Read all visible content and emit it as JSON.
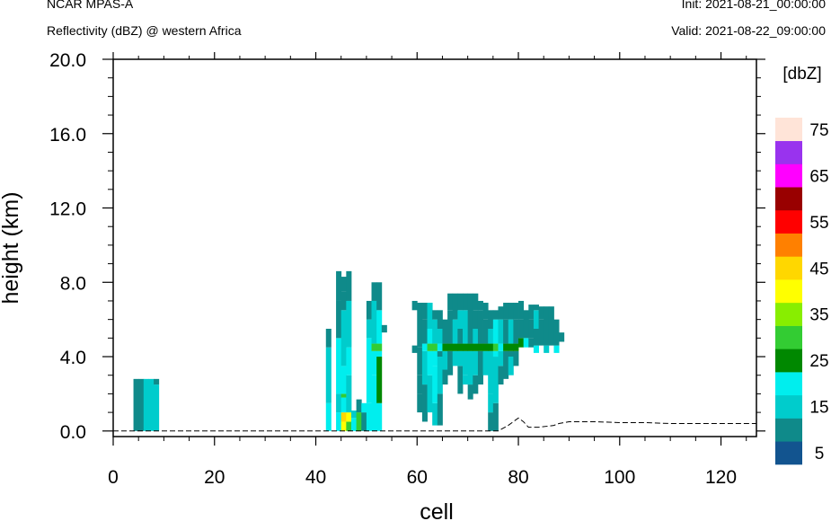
{
  "header": {
    "left_line1": "NCAR MPAS-A",
    "left_line2": "Reflectivity (dBZ) @ western Africa",
    "right_line1": "Init: 2021-08-21_00:00:00",
    "right_line2": "Valid: 2021-08-22_09:00:00"
  },
  "chart_data": {
    "type": "heatmap",
    "xlabel": "cell",
    "ylabel": "height (km)",
    "xlim": [
      0,
      127
    ],
    "ylim": [
      -0.3,
      20.0
    ],
    "x_ticks": [
      "0",
      "20",
      "40",
      "60",
      "80",
      "100",
      "120"
    ],
    "y_ticks": [
      "0.0",
      "4.0",
      "8.0",
      "12.0",
      "16.0",
      "20.0"
    ],
    "colorbar": {
      "unit_label": "[dbZ]",
      "tick_labels": [
        "5",
        "15",
        "25",
        "35",
        "45",
        "55",
        "65",
        "75"
      ],
      "levels": [
        0,
        5,
        10,
        15,
        20,
        25,
        30,
        35,
        40,
        45,
        50,
        55,
        60,
        65,
        70,
        75,
        80
      ],
      "colors": [
        "#12548f",
        "#0f8a8a",
        "#00cccc",
        "#00eeee",
        "#008800",
        "#33cc33",
        "#88ee00",
        "#ffff00",
        "#ffd700",
        "#ff8000",
        "#ff0000",
        "#990000",
        "#ff00ff",
        "#9933ee",
        "#ffe4d8"
      ]
    },
    "terrain_km": [
      [
        0,
        0.0
      ],
      [
        76,
        0.0
      ],
      [
        78,
        0.3
      ],
      [
        80,
        0.7
      ],
      [
        81,
        0.5
      ],
      [
        82,
        0.2
      ],
      [
        84,
        0.2
      ],
      [
        87,
        0.3
      ],
      [
        88,
        0.4
      ],
      [
        90,
        0.5
      ],
      [
        95,
        0.5
      ],
      [
        100,
        0.45
      ],
      [
        105,
        0.45
      ],
      [
        110,
        0.4
      ],
      [
        115,
        0.4
      ],
      [
        120,
        0.4
      ],
      [
        125,
        0.4
      ],
      [
        127,
        0.4
      ]
    ],
    "columns": [
      {
        "x": 4,
        "segs": [
          [
            0,
            2.8,
            5
          ]
        ]
      },
      {
        "x": 5,
        "segs": [
          [
            0,
            2.8,
            5
          ]
        ]
      },
      {
        "x": 6,
        "segs": [
          [
            0,
            2.8,
            10
          ]
        ]
      },
      {
        "x": 7,
        "segs": [
          [
            0,
            2.8,
            10
          ]
        ]
      },
      {
        "x": 8,
        "segs": [
          [
            0,
            2.5,
            10
          ],
          [
            2.5,
            2.8,
            5
          ]
        ]
      },
      {
        "x": 42,
        "segs": [
          [
            0,
            1.5,
            15
          ],
          [
            1.5,
            4.5,
            10
          ],
          [
            4.5,
            5.5,
            5
          ]
        ]
      },
      {
        "x": 44,
        "segs": [
          [
            0,
            1.0,
            15
          ],
          [
            1.0,
            2.0,
            10
          ],
          [
            2.0,
            5.0,
            15
          ],
          [
            5.0,
            7.0,
            5
          ],
          [
            7.0,
            8.6,
            5
          ]
        ]
      },
      {
        "x": 45,
        "segs": [
          [
            0,
            0.5,
            35
          ],
          [
            0.5,
            1.0,
            40
          ],
          [
            1.0,
            1.8,
            15
          ],
          [
            1.8,
            2.0,
            25
          ],
          [
            2.0,
            3.5,
            15
          ],
          [
            3.5,
            6.5,
            10
          ],
          [
            6.5,
            7.5,
            5
          ],
          [
            7.5,
            8.3,
            5
          ]
        ]
      },
      {
        "x": 46,
        "segs": [
          [
            0,
            0.5,
            25
          ],
          [
            0.5,
            1.0,
            35
          ],
          [
            1.0,
            3.0,
            10
          ],
          [
            3.0,
            4.5,
            15
          ],
          [
            4.5,
            7.0,
            10
          ],
          [
            7.0,
            8.6,
            5
          ]
        ]
      },
      {
        "x": 47,
        "segs": [
          [
            0,
            0.7,
            15
          ],
          [
            0.7,
            1.1,
            10
          ]
        ]
      },
      {
        "x": 48,
        "segs": [
          [
            0,
            1.0,
            25
          ],
          [
            1.0,
            1.7,
            5
          ]
        ]
      },
      {
        "x": 49,
        "segs": [
          [
            0,
            1.0,
            5
          ],
          [
            1.0,
            1.5,
            15
          ]
        ]
      },
      {
        "x": 50,
        "segs": [
          [
            0,
            1.5,
            15
          ],
          [
            1.5,
            5.0,
            15
          ],
          [
            5.0,
            6.0,
            10
          ],
          [
            6.0,
            7.0,
            5
          ]
        ]
      },
      {
        "x": 51,
        "segs": [
          [
            0,
            3.0,
            15
          ],
          [
            3.0,
            4.3,
            15
          ],
          [
            4.3,
            4.7,
            25
          ],
          [
            4.7,
            7.0,
            10
          ],
          [
            7.0,
            8.0,
            5
          ]
        ]
      },
      {
        "x": 52,
        "segs": [
          [
            0,
            1.5,
            15
          ],
          [
            1.5,
            4.0,
            20
          ],
          [
            4.0,
            4.3,
            15
          ],
          [
            4.3,
            4.7,
            25
          ],
          [
            4.7,
            6.5,
            15
          ],
          [
            6.5,
            8.0,
            5
          ]
        ]
      },
      {
        "x": 53,
        "segs": [
          [
            5.3,
            5.7,
            5
          ]
        ]
      },
      {
        "x": 59,
        "segs": [
          [
            4.2,
            4.6,
            5
          ],
          [
            6.5,
            7.0,
            5
          ]
        ]
      },
      {
        "x": 60,
        "segs": [
          [
            1.0,
            2.0,
            5
          ],
          [
            2.0,
            3.0,
            5
          ],
          [
            3.0,
            4.5,
            5
          ],
          [
            4.5,
            6.9,
            5
          ]
        ]
      },
      {
        "x": 61,
        "segs": [
          [
            0.5,
            2.5,
            5
          ],
          [
            2.5,
            4.3,
            10
          ],
          [
            4.3,
            4.7,
            15
          ],
          [
            4.7,
            6.0,
            5
          ],
          [
            6.0,
            6.9,
            5
          ]
        ]
      },
      {
        "x": 62,
        "segs": [
          [
            1.0,
            3.0,
            10
          ],
          [
            3.0,
            4.3,
            15
          ],
          [
            4.3,
            4.7,
            25
          ],
          [
            4.7,
            5.5,
            15
          ],
          [
            5.5,
            6.9,
            10
          ]
        ]
      },
      {
        "x": 63,
        "segs": [
          [
            0.3,
            1.5,
            10
          ],
          [
            1.5,
            3.5,
            15
          ],
          [
            3.5,
            4.3,
            15
          ],
          [
            4.3,
            4.7,
            25
          ],
          [
            4.7,
            6.0,
            10
          ],
          [
            6.0,
            6.5,
            5
          ]
        ]
      },
      {
        "x": 64,
        "segs": [
          [
            0.3,
            2.0,
            5
          ],
          [
            2.0,
            4.0,
            10
          ],
          [
            4.0,
            4.3,
            5
          ],
          [
            4.3,
            4.7,
            15
          ],
          [
            4.7,
            5.5,
            10
          ],
          [
            5.5,
            6.5,
            5
          ]
        ]
      },
      {
        "x": 65,
        "segs": [
          [
            2.5,
            3.3,
            5
          ],
          [
            3.3,
            4.3,
            10
          ],
          [
            4.3,
            4.7,
            20
          ],
          [
            4.7,
            6.0,
            5
          ]
        ]
      },
      {
        "x": 66,
        "segs": [
          [
            3.0,
            4.3,
            5
          ],
          [
            4.3,
            4.7,
            20
          ],
          [
            4.7,
            6.5,
            5
          ],
          [
            6.5,
            7.4,
            5
          ]
        ]
      },
      {
        "x": 67,
        "segs": [
          [
            3.5,
            4.3,
            10
          ],
          [
            4.3,
            4.7,
            20
          ],
          [
            4.7,
            6.0,
            10
          ],
          [
            6.0,
            7.4,
            5
          ]
        ]
      },
      {
        "x": 68,
        "segs": [
          [
            2.0,
            3.5,
            5
          ],
          [
            3.5,
            4.3,
            10
          ],
          [
            4.3,
            4.7,
            20
          ],
          [
            4.7,
            5.5,
            5
          ],
          [
            5.5,
            6.5,
            10
          ],
          [
            6.5,
            7.4,
            5
          ]
        ]
      },
      {
        "x": 69,
        "segs": [
          [
            2.5,
            3.0,
            10
          ],
          [
            3.0,
            4.3,
            10
          ],
          [
            4.3,
            4.7,
            20
          ],
          [
            4.7,
            6.5,
            10
          ],
          [
            6.5,
            7.4,
            5
          ]
        ]
      },
      {
        "x": 70,
        "segs": [
          [
            1.7,
            2.5,
            5
          ],
          [
            2.5,
            4.3,
            10
          ],
          [
            4.3,
            4.7,
            20
          ],
          [
            4.7,
            5.5,
            5
          ],
          [
            5.5,
            7.4,
            5
          ]
        ]
      },
      {
        "x": 71,
        "segs": [
          [
            2.0,
            3.0,
            5
          ],
          [
            3.0,
            4.3,
            10
          ],
          [
            4.3,
            4.7,
            20
          ],
          [
            4.7,
            5.5,
            10
          ],
          [
            5.5,
            6.5,
            5
          ],
          [
            6.5,
            7.4,
            5
          ]
        ]
      },
      {
        "x": 72,
        "segs": [
          [
            2.5,
            4.3,
            5
          ],
          [
            4.3,
            4.7,
            20
          ],
          [
            4.7,
            6.5,
            5
          ],
          [
            6.5,
            7.0,
            5
          ]
        ]
      },
      {
        "x": 73,
        "segs": [
          [
            3.0,
            4.3,
            10
          ],
          [
            4.3,
            4.7,
            20
          ],
          [
            4.7,
            6.0,
            5
          ],
          [
            6.0,
            6.9,
            5
          ]
        ]
      },
      {
        "x": 74,
        "segs": [
          [
            0.0,
            1.0,
            5
          ],
          [
            1.0,
            2.0,
            10
          ],
          [
            2.0,
            4.3,
            10
          ],
          [
            4.3,
            4.7,
            20
          ],
          [
            4.7,
            5.5,
            10
          ],
          [
            5.5,
            6.5,
            5
          ]
        ]
      },
      {
        "x": 75,
        "segs": [
          [
            0.0,
            1.5,
            5
          ],
          [
            1.5,
            4.0,
            10
          ],
          [
            4.0,
            4.3,
            15
          ],
          [
            4.3,
            4.7,
            25
          ],
          [
            4.7,
            6.0,
            15
          ],
          [
            6.0,
            6.5,
            5
          ]
        ]
      },
      {
        "x": 76,
        "segs": [
          [
            2.5,
            3.5,
            5
          ],
          [
            3.5,
            4.3,
            10
          ],
          [
            4.3,
            4.7,
            15
          ],
          [
            4.7,
            6.0,
            10
          ],
          [
            6.0,
            6.7,
            5
          ]
        ]
      },
      {
        "x": 77,
        "segs": [
          [
            2.8,
            4.3,
            5
          ],
          [
            4.3,
            4.7,
            20
          ],
          [
            4.7,
            6.0,
            5
          ],
          [
            6.0,
            6.9,
            5
          ]
        ]
      },
      {
        "x": 78,
        "segs": [
          [
            3.0,
            4.0,
            10
          ],
          [
            4.0,
            4.3,
            5
          ],
          [
            4.3,
            4.7,
            20
          ],
          [
            4.7,
            6.0,
            10
          ],
          [
            6.0,
            6.9,
            5
          ]
        ]
      },
      {
        "x": 79,
        "segs": [
          [
            3.5,
            4.3,
            5
          ],
          [
            4.3,
            4.7,
            20
          ],
          [
            4.7,
            6.0,
            5
          ],
          [
            6.0,
            6.9,
            5
          ]
        ]
      },
      {
        "x": 80,
        "segs": [
          [
            4.5,
            5.0,
            20
          ],
          [
            5.0,
            6.0,
            5
          ],
          [
            6.0,
            7.0,
            5
          ]
        ]
      },
      {
        "x": 81,
        "segs": [
          [
            4.5,
            5.0,
            15
          ],
          [
            5.0,
            6.5,
            5
          ]
        ]
      },
      {
        "x": 82,
        "segs": [
          [
            4.5,
            5.0,
            5
          ],
          [
            5.0,
            6.0,
            5
          ],
          [
            6.0,
            6.8,
            5
          ]
        ]
      },
      {
        "x": 83,
        "segs": [
          [
            4.2,
            4.6,
            15
          ],
          [
            4.6,
            5.5,
            5
          ],
          [
            5.5,
            6.5,
            10
          ],
          [
            6.5,
            6.8,
            5
          ]
        ]
      },
      {
        "x": 84,
        "segs": [
          [
            4.6,
            6.0,
            5
          ],
          [
            6.0,
            6.7,
            5
          ]
        ]
      },
      {
        "x": 85,
        "segs": [
          [
            4.2,
            4.6,
            10
          ],
          [
            4.6,
            5.5,
            5
          ],
          [
            5.5,
            6.7,
            5
          ]
        ]
      },
      {
        "x": 86,
        "segs": [
          [
            4.6,
            5.5,
            5
          ],
          [
            5.5,
            6.7,
            5
          ]
        ]
      },
      {
        "x": 87,
        "segs": [
          [
            4.2,
            4.6,
            15
          ],
          [
            4.6,
            5.5,
            5
          ],
          [
            5.5,
            6.0,
            5
          ]
        ]
      },
      {
        "x": 88,
        "segs": [
          [
            4.8,
            5.3,
            5
          ]
        ]
      }
    ]
  }
}
